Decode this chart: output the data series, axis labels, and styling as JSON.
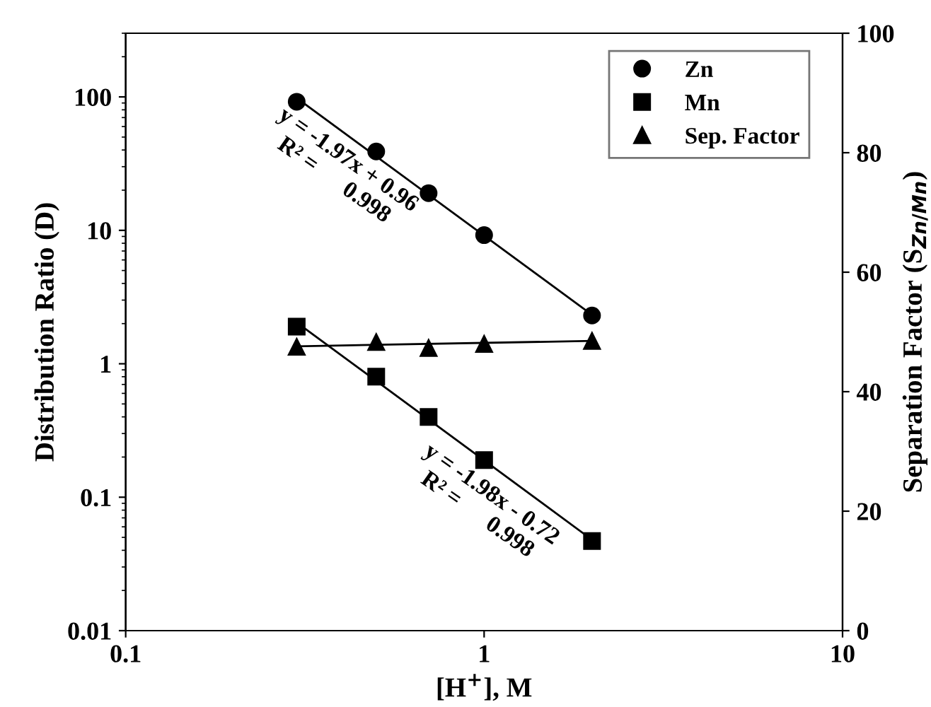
{
  "chart_data": {
    "type": "scatter",
    "xlabel": "[H$^{+}$], M",
    "ylabel": "Distribution Ratio (D)",
    "y2label": "Separation Factor (S$_{Zn/Mn}$)",
    "log": "xy",
    "xlim": [
      0.1,
      10
    ],
    "xticks": [
      0.1,
      1,
      10
    ],
    "ylim": [
      0.01,
      300
    ],
    "yticks": [
      0.01,
      0.1,
      1,
      10,
      100
    ],
    "y2lim": [
      0,
      100
    ],
    "y2ticks": [
      0,
      20,
      40,
      60,
      80,
      100
    ],
    "grid": false,
    "legend": "top right",
    "series": [
      {
        "name": "Zn",
        "color": "#000000",
        "marker": "circle",
        "x": [
          0.3,
          0.5,
          0.7,
          1,
          2
        ],
        "values": [
          92,
          39,
          19,
          9.2,
          2.3
        ]
      },
      {
        "name": "Mn",
        "color": "#000000",
        "marker": "square",
        "x": [
          0.3,
          0.5,
          0.7,
          1,
          2
        ],
        "values": [
          1.9,
          0.8,
          0.4,
          0.19,
          0.047
        ]
      },
      {
        "name": "Sep. Factor",
        "color": "#000000",
        "marker": "triangle",
        "axis": "y2",
        "x": [
          0.3,
          0.5,
          0.7,
          1,
          2
        ],
        "values": [
          47.5,
          48.3,
          47.3,
          48.0,
          48.5
        ]
      },
      {
        "type": "line",
        "color": "#000000",
        "marker": "none",
        "x": [
          0.3,
          2
        ],
        "values": [
          98,
          2.33
        ]
      },
      {
        "type": "line",
        "color": "#000000",
        "marker": "none",
        "x": [
          0.3,
          2
        ],
        "values": [
          2.04,
          0.048
        ]
      },
      {
        "type": "line",
        "color": "#000000",
        "marker": "none",
        "axis": "y2",
        "x": [
          0.3,
          2
        ],
        "values": [
          47.6,
          48.5
        ]
      }
    ],
    "annotations": [
      "y = -1.97x + 0.96\nR² =      0.998",
      "y = -1.98x - 0.72\nR² =      0.998"
    ]
  }
}
